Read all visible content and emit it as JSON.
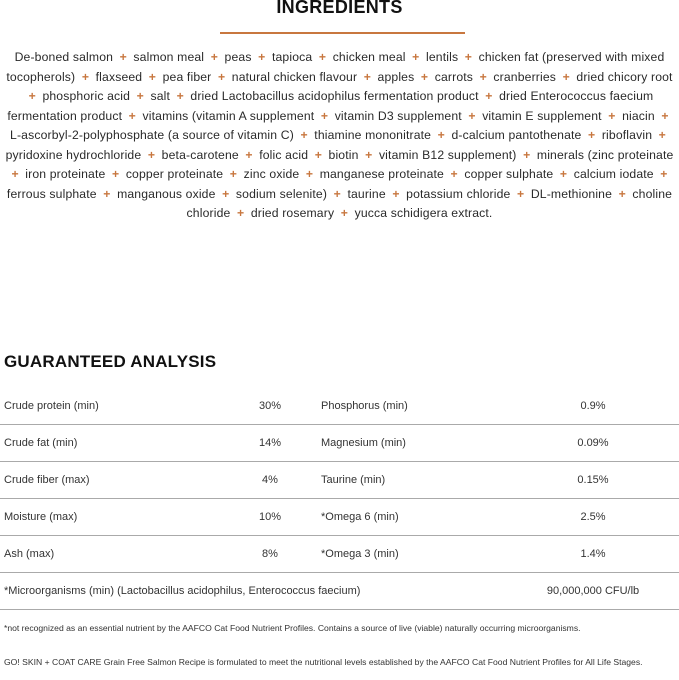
{
  "ingredients": {
    "title": "INGREDIENTS",
    "accent_color": "#c8773f",
    "separator": "+",
    "items": [
      "De-boned salmon",
      "salmon meal",
      "peas",
      "tapioca",
      "chicken meal",
      "lentils",
      "chicken fat (preserved with mixed tocopherols)",
      "flaxseed",
      "pea fiber",
      "natural chicken flavour",
      "apples",
      "carrots",
      "cranberries",
      "dried chicory root",
      "phosphoric acid",
      "salt",
      "dried Lactobacillus acidophilus fermentation product",
      "dried Enterococcus faecium fermentation product",
      "vitamins (vitamin A supplement",
      "vitamin D3 supplement",
      "vitamin E supplement",
      "niacin",
      "L-ascorbyl-2-polyphosphate (a source of vitamin C)",
      "thiamine mononitrate",
      "d-calcium pantothenate",
      "riboflavin",
      "pyridoxine hydrochloride",
      "beta-carotene",
      "folic acid",
      "biotin",
      "vitamin B12 supplement)",
      "minerals (zinc proteinate",
      "iron proteinate",
      "copper proteinate",
      "zinc oxide",
      "manganese proteinate",
      "copper sulphate",
      "calcium iodate",
      "ferrous sulphate",
      "manganous oxide",
      "sodium selenite)",
      "taurine",
      "potassium chloride",
      "DL-methionine",
      "choline chloride",
      "dried rosemary",
      "yucca schidigera extract."
    ]
  },
  "analysis": {
    "title": "GUARANTEED ANALYSIS",
    "rows": [
      {
        "label1": "Crude protein (min)",
        "value1": "30%",
        "label2": "Phosphorus (min)",
        "value2": "0.9%"
      },
      {
        "label1": "Crude fat (min)",
        "value1": "14%",
        "label2": "Magnesium (min)",
        "value2": "0.09%"
      },
      {
        "label1": "Crude fiber (max)",
        "value1": "4%",
        "label2": "Taurine (min)",
        "value2": "0.15%"
      },
      {
        "label1": "Moisture (max)",
        "value1": "10%",
        "label2": "*Omega 6 (min)",
        "value2": "2.5%"
      },
      {
        "label1": "Ash (max)",
        "value1": "8%",
        "label2": "*Omega 3 (min)",
        "value2": "1.4%"
      }
    ],
    "wide_row": {
      "label": "*Microorganisms (min) (Lactobacillus acidophilus, Enterococcus faecium)",
      "value": "90,000,000 CFU/lb"
    }
  },
  "footnote": "*not recognized as an essential nutrient by the AAFCO Cat Food Nutrient Profiles. Contains a source of live (viable) naturally occurring microorganisms.",
  "statement": "GO! SKIN + COAT CARE Grain Free Salmon Recipe is formulated to meet the nutritional levels established by the AAFCO Cat Food Nutrient Profiles for All Life Stages."
}
